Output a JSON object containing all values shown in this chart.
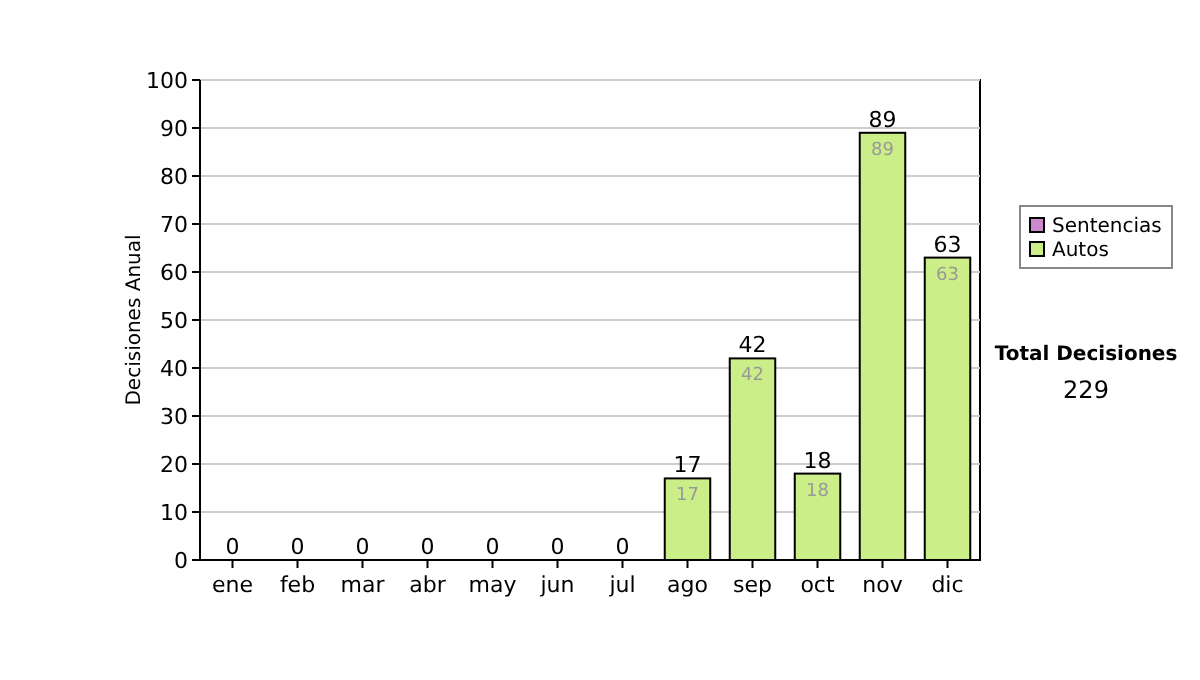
{
  "chart_data": {
    "type": "bar",
    "stacked": true,
    "ylabel": "Decisiones Anual",
    "categories": [
      "ene",
      "feb",
      "mar",
      "abr",
      "may",
      "jun",
      "jul",
      "ago",
      "sep",
      "oct",
      "nov",
      "dic"
    ],
    "series": [
      {
        "name": "Sentencias",
        "color": "#cc88cc",
        "values": [
          0,
          0,
          0,
          0,
          0,
          0,
          0,
          0,
          0,
          0,
          0,
          0
        ]
      },
      {
        "name": "Autos",
        "color": "#ccee88",
        "values": [
          0,
          0,
          0,
          0,
          0,
          0,
          0,
          17,
          42,
          18,
          89,
          63
        ],
        "value_labels": [
          null,
          null,
          null,
          null,
          null,
          null,
          null,
          "17",
          "42",
          "18",
          "89",
          "63"
        ]
      }
    ],
    "totals": [
      "0",
      "0",
      "0",
      "0",
      "0",
      "0",
      "0",
      "17",
      "42",
      "18",
      "89",
      "63"
    ],
    "ylim": [
      0,
      100
    ],
    "yticks": [
      0,
      10,
      20,
      30,
      40,
      50,
      60,
      70,
      80,
      90,
      100
    ],
    "grid": "y",
    "legend": "right",
    "annotations": [
      "Total Decisiones",
      "229"
    ]
  }
}
